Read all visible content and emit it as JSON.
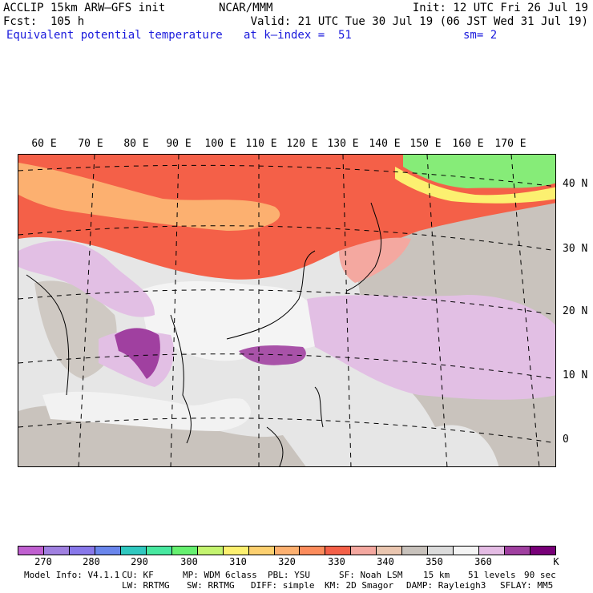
{
  "header": {
    "model_title": "ACCLIP 15km ARW–GFS init",
    "center": "NCAR/MMM",
    "init": "Init: 12 UTC Fri 26 Jul 19",
    "fcst": "Fcst:  105 h",
    "valid": "Valid: 21 UTC Tue 30 Jul 19 (06 JST Wed 31 Jul 19)",
    "field": "Equivalent potential temperature",
    "level": "at k–index =  51",
    "smooth": "sm= 2"
  },
  "map": {
    "longitude_labels": [
      "60 E",
      "70 E",
      "80 E",
      "90 E",
      "100 E",
      "110 E",
      "120 E",
      "130 E",
      "140 E",
      "150 E",
      "160 E",
      "170 E"
    ],
    "latitude_labels": [
      "40 N",
      "30 N",
      "20 N",
      "10 N",
      "0"
    ]
  },
  "colorbar": {
    "unit": "K",
    "tick_labels": [
      "270",
      "280",
      "290",
      "300",
      "310",
      "320",
      "330",
      "340",
      "350",
      "360"
    ],
    "colors": [
      "#c060d0",
      "#a080e0",
      "#8878ea",
      "#6a86ec",
      "#30c8c0",
      "#48e8a0",
      "#66f070",
      "#c4f470",
      "#fcf070",
      "#fcd070",
      "#fcb070",
      "#fc8c5c",
      "#f46048",
      "#f4a8a0",
      "#eac6b0",
      "#c8c2bc",
      "#dcdcdc",
      "#f4f4f4",
      "#e4bce4",
      "#a040a0",
      "#780078"
    ]
  },
  "footer": {
    "line1": [
      "Model Info: V4.1.1",
      "CU: KF",
      "MP: WDM 6class",
      "PBL: YSU",
      "SF: Noah LSM",
      "15 km",
      "51 levels",
      "90 sec"
    ],
    "line2": [
      "LW: RRTMG",
      "SW: RRTMG",
      "DIFF: simple",
      "KM: 2D Smagor",
      "DAMP: Rayleigh3",
      "SFLAY: MM5"
    ]
  }
}
